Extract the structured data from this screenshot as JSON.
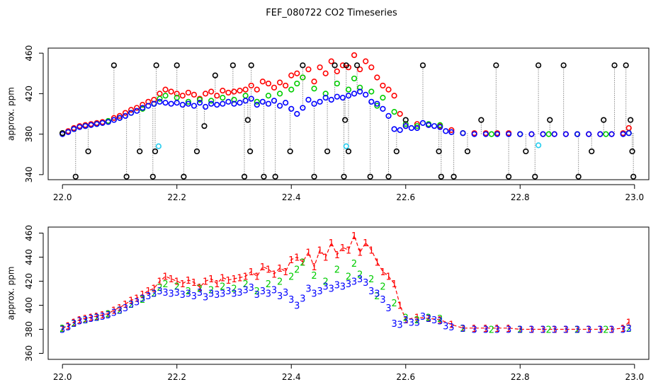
{
  "title": "FEF_080722  CO2 Timeseries",
  "colors": {
    "black": "#000000",
    "red": "#ff0000",
    "green": "#00cc00",
    "blue": "#0000ff",
    "cyan": "#22ccee",
    "gray": "#888888"
  },
  "chart_data": [
    {
      "type": "scatter",
      "ylabel": "approx. ppm",
      "xlim": [
        21.975,
        23.025
      ],
      "ylim": [
        335,
        465
      ],
      "xticks": [
        22.0,
        22.2,
        22.4,
        22.6,
        22.8,
        23.0
      ],
      "xtick_labels": [
        "22.0",
        "22.2",
        "22.4",
        "22.6",
        "22.8",
        "23.0"
      ],
      "yticks": [
        340,
        380,
        420,
        460
      ],
      "ytick_labels": [
        "340",
        "380",
        "420",
        "460"
      ],
      "grid": false,
      "series": [
        {
          "color": "red",
          "marker": "circle",
          "x": [
            22.0,
            22.01,
            22.02,
            22.03,
            22.04,
            22.05,
            22.06,
            22.07,
            22.08,
            22.09,
            22.1,
            22.11,
            22.12,
            22.13,
            22.14,
            22.15,
            22.16,
            22.17,
            22.18,
            22.19,
            22.2,
            22.21,
            22.22,
            22.23,
            22.24,
            22.25,
            22.26,
            22.27,
            22.28,
            22.29,
            22.3,
            22.31,
            22.32,
            22.33,
            22.34,
            22.35,
            22.36,
            22.37,
            22.38,
            22.39,
            22.4,
            22.41,
            22.42,
            22.43,
            22.44,
            22.45,
            22.46,
            22.47,
            22.48,
            22.49,
            22.5,
            22.51,
            22.52,
            22.53,
            22.54,
            22.55,
            22.56,
            22.57,
            22.58,
            22.59,
            22.6,
            22.62,
            22.64,
            22.66,
            22.68,
            22.7,
            22.72,
            22.74,
            22.76,
            22.78,
            22.8,
            22.82,
            22.84,
            22.86,
            22.88,
            22.9,
            22.92,
            22.94,
            22.96,
            22.98,
            22.99
          ],
          "y": [
            381,
            383,
            386,
            388,
            389,
            390,
            391,
            392,
            393,
            396,
            398,
            401,
            404,
            406,
            409,
            412,
            414,
            420,
            424,
            422,
            420,
            418,
            421,
            419,
            415,
            420,
            422,
            418,
            423,
            421,
            422,
            423,
            424,
            428,
            424,
            432,
            430,
            426,
            431,
            428,
            438,
            440,
            436,
            444,
            432,
            446,
            440,
            452,
            442,
            448,
            446,
            458,
            444,
            452,
            446,
            436,
            428,
            424,
            418,
            400,
            388,
            390,
            389,
            388,
            384,
            381,
            381,
            381,
            381,
            381,
            380,
            380,
            380,
            380,
            380,
            380,
            380,
            380,
            380,
            381,
            386
          ]
        },
        {
          "color": "green",
          "marker": "circle",
          "x": [
            22.0,
            22.02,
            22.04,
            22.06,
            22.08,
            22.1,
            22.12,
            22.14,
            22.16,
            22.17,
            22.18,
            22.2,
            22.22,
            22.24,
            22.26,
            22.28,
            22.3,
            22.32,
            22.34,
            22.36,
            22.38,
            22.4,
            22.41,
            22.42,
            22.44,
            22.46,
            22.48,
            22.5,
            22.51,
            22.52,
            22.54,
            22.55,
            22.56,
            22.58,
            22.6,
            22.62,
            22.64,
            22.66,
            22.7,
            22.75,
            22.8,
            22.85,
            22.9,
            22.95,
            22.99
          ],
          "y": [
            381,
            385,
            388,
            390,
            393,
            396,
            401,
            405,
            410,
            415,
            418,
            416,
            412,
            414,
            413,
            416,
            414,
            418,
            412,
            418,
            420,
            424,
            430,
            436,
            425,
            420,
            430,
            424,
            435,
            426,
            422,
            408,
            416,
            402,
            390,
            388,
            390,
            389,
            381,
            380,
            380,
            380,
            380,
            380,
            381
          ]
        },
        {
          "color": "blue",
          "marker": "circle",
          "x": [
            22.0,
            22.01,
            22.02,
            22.03,
            22.04,
            22.05,
            22.06,
            22.07,
            22.08,
            22.09,
            22.1,
            22.11,
            22.12,
            22.13,
            22.14,
            22.15,
            22.16,
            22.17,
            22.18,
            22.19,
            22.2,
            22.21,
            22.22,
            22.23,
            22.24,
            22.25,
            22.26,
            22.27,
            22.28,
            22.29,
            22.3,
            22.31,
            22.32,
            22.33,
            22.34,
            22.35,
            22.36,
            22.37,
            22.38,
            22.39,
            22.4,
            22.41,
            22.42,
            22.43,
            22.44,
            22.45,
            22.46,
            22.47,
            22.48,
            22.49,
            22.5,
            22.51,
            22.52,
            22.53,
            22.54,
            22.55,
            22.56,
            22.57,
            22.58,
            22.59,
            22.6,
            22.61,
            22.62,
            22.63,
            22.64,
            22.65,
            22.66,
            22.67,
            22.68,
            22.7,
            22.72,
            22.74,
            22.76,
            22.78,
            22.8,
            22.82,
            22.84,
            22.86,
            22.88,
            22.9,
            22.92,
            22.94,
            22.96,
            22.98,
            22.99
          ],
          "y": [
            380,
            382,
            385,
            387,
            388,
            389,
            390,
            391,
            392,
            394,
            396,
            398,
            401,
            403,
            406,
            408,
            410,
            412,
            411,
            410,
            411,
            409,
            410,
            408,
            411,
            407,
            410,
            409,
            410,
            412,
            410,
            411,
            413,
            415,
            409,
            412,
            410,
            413,
            408,
            411,
            405,
            400,
            406,
            414,
            410,
            412,
            416,
            414,
            417,
            416,
            418,
            420,
            422,
            419,
            412,
            410,
            405,
            398,
            385,
            384,
            388,
            386,
            386,
            391,
            389,
            388,
            387,
            383,
            382,
            381,
            380,
            380,
            380,
            380,
            380,
            380,
            380,
            380,
            380,
            380,
            380,
            380,
            380,
            380,
            381
          ]
        },
        {
          "color": "cyan",
          "marker": "circle",
          "x": [
            22.168,
            22.496,
            22.832
          ],
          "y": [
            368,
            368,
            369
          ]
        },
        {
          "color": "black",
          "marker": "circle",
          "x": [
            22.0,
            22.023,
            22.045,
            22.09,
            22.112,
            22.135,
            22.158,
            22.162,
            22.164,
            22.2,
            22.212,
            22.235,
            22.248,
            22.267,
            22.298,
            22.318,
            22.324,
            22.328,
            22.33,
            22.352,
            22.372,
            22.398,
            22.42,
            22.44,
            22.463,
            22.476,
            22.492,
            22.494,
            22.496,
            22.5,
            22.515,
            22.538,
            22.57,
            22.584,
            22.6,
            22.63,
            22.658,
            22.662,
            22.684,
            22.708,
            22.732,
            22.758,
            22.78,
            22.81,
            22.826,
            22.832,
            22.852,
            22.876,
            22.902,
            22.925,
            22.946,
            22.965,
            22.985,
            22.993,
            22.996,
            22.998
          ],
          "y": [
            381,
            338,
            363,
            448,
            338,
            363,
            338,
            363,
            448,
            448,
            338,
            363,
            388,
            438,
            448,
            338,
            394,
            363,
            448,
            338,
            338,
            363,
            448,
            338,
            363,
            448,
            338,
            394,
            448,
            363,
            448,
            338,
            338,
            363,
            394,
            448,
            363,
            338,
            338,
            363,
            394,
            448,
            338,
            363,
            338,
            448,
            394,
            448,
            338,
            363,
            394,
            448,
            448,
            394,
            363,
            338
          ]
        }
      ]
    },
    {
      "type": "scatter",
      "ylabel": "approx. ppm",
      "xlim": [
        21.975,
        23.025
      ],
      "ylim": [
        355,
        465
      ],
      "xticks": [
        22.0,
        22.2,
        22.4,
        22.6,
        22.8,
        23.0
      ],
      "xtick_labels": [
        "22.0",
        "22.2",
        "22.4",
        "22.6",
        "22.8",
        "23.0"
      ],
      "yticks": [
        360,
        380,
        400,
        420,
        440,
        460
      ],
      "ytick_labels": [
        "360",
        "380",
        "400",
        "420",
        "440",
        "460"
      ],
      "grid": false,
      "series": [
        {
          "label": "1",
          "color": "red",
          "marker": "digit",
          "x": [
            22.0,
            22.01,
            22.02,
            22.03,
            22.04,
            22.05,
            22.06,
            22.07,
            22.08,
            22.09,
            22.1,
            22.11,
            22.12,
            22.13,
            22.14,
            22.15,
            22.16,
            22.17,
            22.18,
            22.19,
            22.2,
            22.21,
            22.22,
            22.23,
            22.24,
            22.25,
            22.26,
            22.27,
            22.28,
            22.29,
            22.3,
            22.31,
            22.32,
            22.33,
            22.34,
            22.35,
            22.36,
            22.37,
            22.38,
            22.39,
            22.4,
            22.41,
            22.42,
            22.43,
            22.44,
            22.45,
            22.46,
            22.47,
            22.48,
            22.49,
            22.5,
            22.51,
            22.52,
            22.53,
            22.54,
            22.55,
            22.56,
            22.57,
            22.58,
            22.59,
            22.6,
            22.62,
            22.64,
            22.66,
            22.68,
            22.7,
            22.72,
            22.74,
            22.76,
            22.78,
            22.8,
            22.82,
            22.84,
            22.86,
            22.88,
            22.9,
            22.92,
            22.94,
            22.96,
            22.98,
            22.99
          ],
          "y": [
            381,
            383,
            386,
            388,
            389,
            390,
            391,
            392,
            393,
            396,
            398,
            401,
            404,
            406,
            409,
            412,
            414,
            420,
            424,
            422,
            420,
            418,
            421,
            419,
            415,
            420,
            422,
            418,
            423,
            421,
            422,
            423,
            424,
            428,
            424,
            432,
            430,
            426,
            431,
            428,
            438,
            440,
            436,
            444,
            432,
            446,
            440,
            452,
            442,
            448,
            446,
            458,
            444,
            452,
            446,
            436,
            428,
            424,
            418,
            400,
            388,
            390,
            389,
            388,
            384,
            381,
            381,
            381,
            381,
            381,
            380,
            380,
            380,
            380,
            380,
            380,
            380,
            380,
            380,
            381,
            386
          ]
        },
        {
          "label": "2",
          "color": "green",
          "marker": "digit",
          "x": [
            22.0,
            22.02,
            22.04,
            22.06,
            22.08,
            22.1,
            22.12,
            22.14,
            22.16,
            22.17,
            22.18,
            22.2,
            22.22,
            22.24,
            22.26,
            22.28,
            22.3,
            22.32,
            22.34,
            22.36,
            22.38,
            22.4,
            22.41,
            22.42,
            22.44,
            22.46,
            22.48,
            22.5,
            22.51,
            22.52,
            22.54,
            22.55,
            22.56,
            22.58,
            22.6,
            22.62,
            22.64,
            22.66,
            22.7,
            22.75,
            22.8,
            22.85,
            22.9,
            22.95,
            22.99
          ],
          "y": [
            381,
            385,
            388,
            390,
            393,
            396,
            401,
            405,
            410,
            415,
            418,
            416,
            412,
            414,
            413,
            416,
            414,
            418,
            412,
            418,
            420,
            424,
            430,
            436,
            425,
            420,
            430,
            424,
            435,
            426,
            422,
            408,
            416,
            402,
            390,
            388,
            390,
            389,
            381,
            380,
            380,
            380,
            380,
            380,
            381
          ]
        },
        {
          "label": "3",
          "color": "blue",
          "marker": "digit",
          "x": [
            22.0,
            22.01,
            22.02,
            22.03,
            22.04,
            22.05,
            22.06,
            22.07,
            22.08,
            22.09,
            22.1,
            22.11,
            22.12,
            22.13,
            22.14,
            22.15,
            22.16,
            22.17,
            22.18,
            22.19,
            22.2,
            22.21,
            22.22,
            22.23,
            22.24,
            22.25,
            22.26,
            22.27,
            22.28,
            22.29,
            22.3,
            22.31,
            22.32,
            22.33,
            22.34,
            22.35,
            22.36,
            22.37,
            22.38,
            22.39,
            22.4,
            22.41,
            22.42,
            22.43,
            22.44,
            22.45,
            22.46,
            22.47,
            22.48,
            22.49,
            22.5,
            22.51,
            22.52,
            22.53,
            22.54,
            22.55,
            22.56,
            22.57,
            22.58,
            22.59,
            22.6,
            22.61,
            22.62,
            22.63,
            22.64,
            22.65,
            22.66,
            22.67,
            22.68,
            22.7,
            22.72,
            22.74,
            22.76,
            22.78,
            22.8,
            22.82,
            22.84,
            22.86,
            22.88,
            22.9,
            22.92,
            22.94,
            22.96,
            22.98,
            22.99
          ],
          "y": [
            380,
            382,
            385,
            387,
            388,
            389,
            390,
            391,
            392,
            394,
            396,
            398,
            401,
            403,
            406,
            408,
            410,
            412,
            411,
            410,
            411,
            409,
            410,
            408,
            411,
            407,
            410,
            409,
            410,
            412,
            410,
            411,
            413,
            415,
            409,
            412,
            410,
            413,
            408,
            411,
            405,
            400,
            406,
            414,
            410,
            412,
            416,
            414,
            417,
            416,
            418,
            420,
            422,
            419,
            412,
            410,
            405,
            398,
            385,
            384,
            388,
            386,
            386,
            391,
            389,
            388,
            387,
            383,
            382,
            381,
            380,
            380,
            380,
            380,
            380,
            380,
            380,
            380,
            380,
            380,
            380,
            380,
            380,
            380,
            381
          ]
        }
      ]
    }
  ]
}
